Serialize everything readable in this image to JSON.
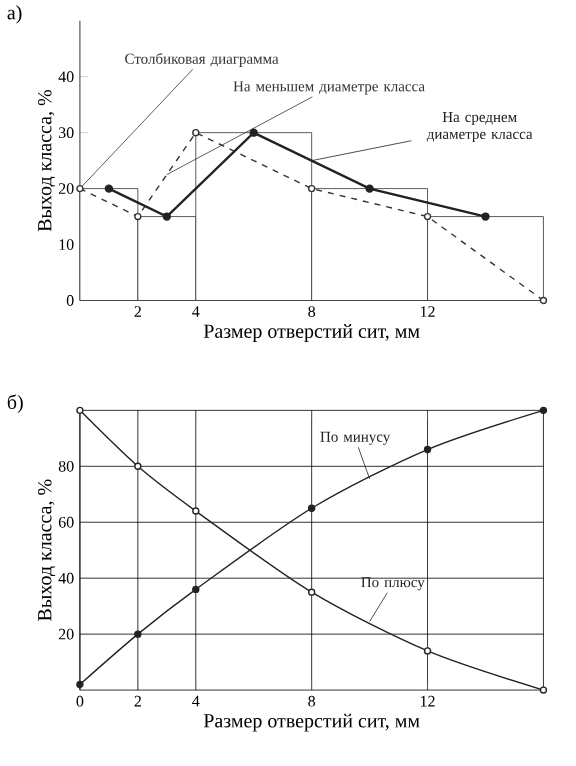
{
  "chart_data": [
    {
      "type": "line",
      "title": "а)",
      "xlabel": "Размер отверстий сит, мм",
      "ylabel": "Выход класса, %",
      "xlim": [
        0,
        16
      ],
      "ylim": [
        0,
        50
      ],
      "xticks": [
        2,
        4,
        8,
        12
      ],
      "yticks": [
        0,
        10,
        20,
        30,
        40
      ],
      "marker": "circle",
      "series": [
        {
          "type": "histogram",
          "name": "Столбиковая диаграмма",
          "color": "#333333",
          "bins": [
            0,
            2,
            4,
            8,
            12,
            16
          ],
          "values": [
            20,
            15,
            30,
            20,
            15
          ]
        },
        {
          "name": "На меньшем диаметре класса",
          "color": "#333333",
          "line_style": "dashed",
          "x": [
            0,
            2,
            4,
            8,
            12,
            16
          ],
          "values": [
            20,
            15,
            30,
            20,
            15,
            0
          ]
        },
        {
          "name": "На среднем диаметре класса",
          "color": "#222222",
          "line_style": "solid",
          "x": [
            1,
            3,
            6,
            10,
            14
          ],
          "values": [
            20,
            15,
            30,
            20,
            15
          ]
        }
      ]
    },
    {
      "type": "line",
      "title": "б)",
      "xlabel": "Размер отверстий сит, мм",
      "ylabel": "Выход класса, %",
      "xlim": [
        0,
        16
      ],
      "ylim": [
        0,
        100
      ],
      "xticks": [
        0,
        2,
        4,
        8,
        12
      ],
      "yticks": [
        20,
        40,
        60,
        80
      ],
      "grid": true,
      "marker": "circle",
      "series": [
        {
          "name": "По минусу",
          "color": "#222222",
          "line_style": "solid",
          "x": [
            0,
            2,
            4,
            8,
            12,
            16
          ],
          "values": [
            2,
            20,
            36,
            65,
            86,
            100
          ]
        },
        {
          "name": "По плюсу",
          "color": "#222222",
          "line_style": "solid",
          "x": [
            0,
            2,
            4,
            8,
            12,
            16
          ],
          "values": [
            100,
            80,
            64,
            35,
            14,
            0
          ]
        }
      ]
    }
  ]
}
